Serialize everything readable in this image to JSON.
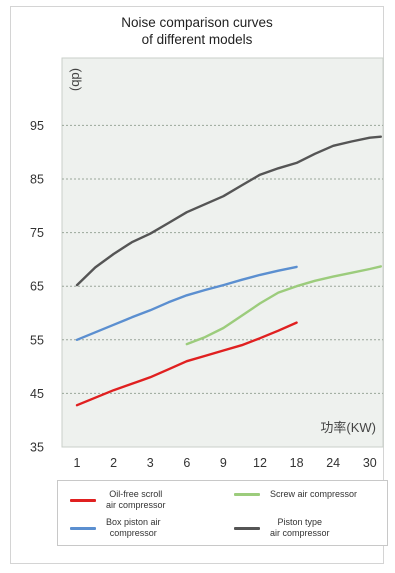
{
  "chart_data": {
    "type": "line",
    "title_lines": [
      "Noise comparison curves",
      "of different models"
    ],
    "ylabel": "(db)",
    "xlabel": "功率(KW)",
    "ylim": [
      35,
      100
    ],
    "yticks": [
      35,
      45,
      55,
      65,
      75,
      85,
      95
    ],
    "categories": [
      "1",
      "2",
      "3",
      "6",
      "9",
      "12",
      "18",
      "24",
      "30"
    ],
    "grid": true,
    "legend_position": "bottom",
    "series": [
      {
        "name": "Oil-free scroll air compressor",
        "legend_lines": [
          "Oil-free scroll",
          "air compressor"
        ],
        "color": "#e02020",
        "points": [
          [
            0,
            42.8
          ],
          [
            0.5,
            44.2
          ],
          [
            1,
            45.6
          ],
          [
            1.5,
            46.8
          ],
          [
            2,
            48.0
          ],
          [
            2.5,
            49.5
          ],
          [
            3,
            51.0
          ],
          [
            3.5,
            52.0
          ],
          [
            4,
            53.0
          ],
          [
            4.5,
            54.0
          ],
          [
            5,
            55.3
          ],
          [
            5.5,
            56.7
          ],
          [
            6,
            58.2
          ]
        ]
      },
      {
        "name": "Box piston air compressor",
        "legend_lines": [
          "Box piston air",
          "compressor"
        ],
        "color": "#5b8fd0",
        "points": [
          [
            0,
            55.0
          ],
          [
            0.5,
            56.4
          ],
          [
            1,
            57.8
          ],
          [
            1.5,
            59.2
          ],
          [
            2,
            60.5
          ],
          [
            2.5,
            62.0
          ],
          [
            3,
            63.3
          ],
          [
            3.5,
            64.3
          ],
          [
            4,
            65.2
          ],
          [
            4.5,
            66.2
          ],
          [
            5,
            67.1
          ],
          [
            5.5,
            67.9
          ],
          [
            6,
            68.6
          ]
        ]
      },
      {
        "name": "Screw air compressor",
        "legend_lines": [
          "Screw air compressor"
        ],
        "color": "#9ccc7c",
        "points": [
          [
            3,
            54.2
          ],
          [
            3.5,
            55.5
          ],
          [
            4,
            57.2
          ],
          [
            4.5,
            59.5
          ],
          [
            5,
            61.8
          ],
          [
            5.5,
            63.8
          ],
          [
            6,
            65.0
          ],
          [
            6.5,
            66.0
          ],
          [
            7,
            66.8
          ],
          [
            7.5,
            67.5
          ],
          [
            8,
            68.2
          ],
          [
            8.3,
            68.7
          ]
        ]
      },
      {
        "name": "Piston type air compressor",
        "legend_lines": [
          "Piston type",
          "air compressor"
        ],
        "color": "#555555",
        "points": [
          [
            0,
            65.2
          ],
          [
            0.5,
            68.5
          ],
          [
            1,
            71.0
          ],
          [
            1.5,
            73.2
          ],
          [
            2,
            74.8
          ],
          [
            2.5,
            76.8
          ],
          [
            3,
            78.8
          ],
          [
            3.5,
            80.3
          ],
          [
            4,
            81.8
          ],
          [
            4.5,
            83.8
          ],
          [
            5,
            85.8
          ],
          [
            5.5,
            87.0
          ],
          [
            6,
            88.0
          ],
          [
            6.5,
            89.7
          ],
          [
            7,
            91.2
          ],
          [
            7.5,
            92.0
          ],
          [
            8,
            92.7
          ],
          [
            8.3,
            92.9
          ]
        ]
      }
    ]
  }
}
